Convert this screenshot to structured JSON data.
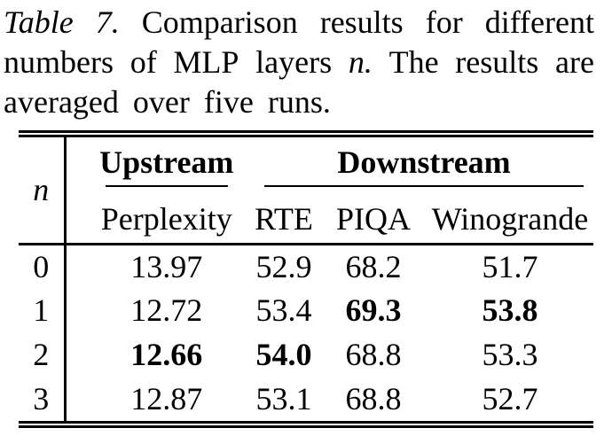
{
  "caption": {
    "full_text": "Table 7. Comparison results for different numbers of MLP layers n. The results are averaged over five runs.",
    "lines": [
      {
        "justify": true,
        "words": [
          {
            "t": "Table",
            "i": true
          },
          {
            "t": "7.",
            "i": true
          },
          {
            "t": "Comparison"
          },
          {
            "t": "results"
          },
          {
            "t": "for"
          },
          {
            "t": "different"
          }
        ]
      },
      {
        "justify": true,
        "words": [
          {
            "t": "numbers"
          },
          {
            "t": "of"
          },
          {
            "t": "MLP"
          },
          {
            "t": "layers"
          },
          {
            "t": "n.",
            "i": true
          },
          {
            "t": "The"
          },
          {
            "t": "results"
          },
          {
            "t": "are"
          }
        ]
      },
      {
        "justify": false,
        "words": [
          {
            "t": "averaged"
          },
          {
            "t": "over"
          },
          {
            "t": "five"
          },
          {
            "t": "runs."
          }
        ]
      }
    ]
  },
  "table": {
    "corner_label": "n",
    "groups": [
      {
        "label": "Upstream",
        "span": 1
      },
      {
        "label": "Downstream",
        "span": 3
      }
    ],
    "columns": [
      "Perplexity",
      "RTE",
      "PIQA",
      "Winogrande"
    ],
    "rows": [
      {
        "n": "0",
        "cells": [
          {
            "v": "13.97"
          },
          {
            "v": "52.9"
          },
          {
            "v": "68.2"
          },
          {
            "v": "51.7"
          }
        ]
      },
      {
        "n": "1",
        "cells": [
          {
            "v": "12.72"
          },
          {
            "v": "53.4"
          },
          {
            "v": "69.3",
            "b": true
          },
          {
            "v": "53.8",
            "b": true
          }
        ]
      },
      {
        "n": "2",
        "cells": [
          {
            "v": "12.66",
            "b": true
          },
          {
            "v": "54.0",
            "b": true
          },
          {
            "v": "68.8"
          },
          {
            "v": "53.3"
          }
        ]
      },
      {
        "n": "3",
        "cells": [
          {
            "v": "12.87"
          },
          {
            "v": "53.1"
          },
          {
            "v": "68.8"
          },
          {
            "v": "52.7"
          }
        ]
      }
    ],
    "text_color": "#000000",
    "background": "#ffffff"
  }
}
